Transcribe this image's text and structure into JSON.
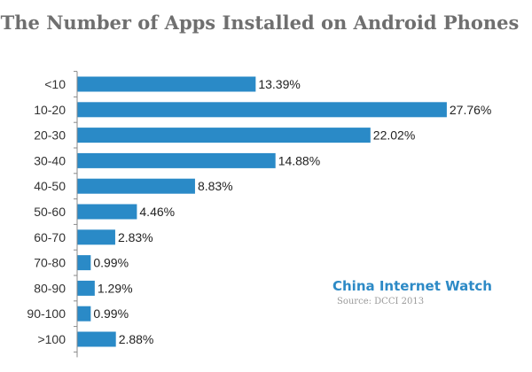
{
  "chart_data": {
    "type": "bar",
    "orientation": "horizontal",
    "title": "The Number of Apps Installed on Android Phones",
    "categories": [
      "<10",
      "10-20",
      "20-30",
      "30-40",
      "40-50",
      "50-60",
      "60-70",
      "70-80",
      "80-90",
      "90-100",
      ">100"
    ],
    "values": [
      13.39,
      27.76,
      22.02,
      14.88,
      8.83,
      4.46,
      2.83,
      0.99,
      1.29,
      0.99,
      2.88
    ],
    "value_labels": [
      "13.39%",
      "27.76%",
      "22.02%",
      "14.88%",
      "8.83%",
      "4.46%",
      "2.83%",
      "0.99%",
      "1.29%",
      "0.99%",
      "2.88%"
    ],
    "xlim": [
      0,
      28.2
    ],
    "grid": false,
    "bar_color": "#2a8ac7",
    "axis_color": "#8a8a8a"
  },
  "watermark": {
    "brand": "China Internet Watch",
    "source": "Source: DCCI 2013"
  }
}
